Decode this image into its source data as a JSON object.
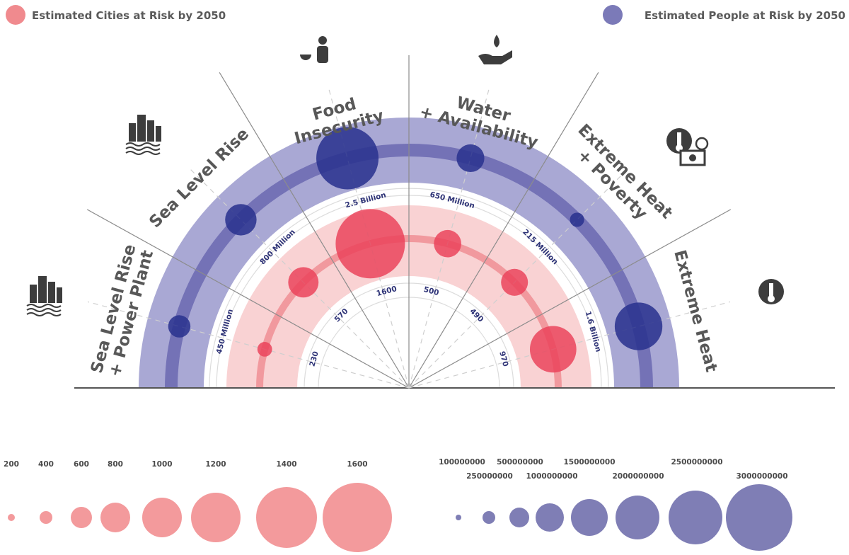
{
  "chart_data": {
    "type": "radial-bubble",
    "legend": {
      "cities": {
        "label": "Estimated Cities at Risk by 2050",
        "color": "#f08a8e",
        "placement": "top-left"
      },
      "people": {
        "label": "Estimated People at Risk by 2050",
        "color": "#7b7ab8",
        "placement": "top-right"
      }
    },
    "categories": [
      {
        "label_lines": [
          "Sea Level Rise",
          "+ Power Plant"
        ],
        "icon": "factory-flood-icon",
        "cities": 230,
        "people": 450000000,
        "people_label": "450 Million",
        "cities_label": "230"
      },
      {
        "label_lines": [
          "Sea Level Rise"
        ],
        "icon": "buildings-flood-icon",
        "cities": 570,
        "people": 800000000,
        "people_label": "800 Million",
        "cities_label": "570"
      },
      {
        "label_lines": [
          "Food",
          "Insecurity"
        ],
        "icon": "person-bowl-icon",
        "cities": 1600,
        "people": 2500000000,
        "people_label": "2.5 Billion",
        "cities_label": "1600"
      },
      {
        "label_lines": [
          "Water",
          "+ Availability"
        ],
        "icon": "hand-water-drop-icon",
        "cities": 500,
        "people": 650000000,
        "people_label": "650 Million",
        "cities_label": "500"
      },
      {
        "label_lines": [
          "Extreme Heat",
          "+ Poverty"
        ],
        "icon": "thermometer-money-icon",
        "cities": 490,
        "people": 215000000,
        "people_label": "215 Million",
        "cities_label": "490"
      },
      {
        "label_lines": [
          "Extreme Heat"
        ],
        "icon": "thermometer-globe-icon",
        "cities": 970,
        "people": 1600000000,
        "people_label": "1.6 Billion",
        "cities_label": "970"
      }
    ],
    "size_legend_cities": {
      "values": [
        200,
        400,
        600,
        800,
        1000,
        1200,
        1400,
        1600
      ],
      "labels": [
        "200",
        "400",
        "600",
        "800",
        "1000",
        "1200",
        "1400",
        "1600"
      ]
    },
    "size_legend_people": {
      "values": [
        100000000,
        250000000,
        500000000,
        1000000000,
        1500000000,
        2000000000,
        2500000000,
        3000000000
      ],
      "labels": [
        "100000000",
        "250000000",
        "500000000",
        "1000000000",
        "1500000000",
        "2000000000",
        "2500000000",
        "3000000000"
      ]
    },
    "colors": {
      "people_band": "#a9a8d4",
      "people_track": "#7472b6",
      "people_bubble": "#2b3390",
      "cities_band": "#f9d2d3",
      "cities_track": "#f1999e",
      "cities_bubble": "#ea3f58",
      "text": "#585858"
    }
  }
}
